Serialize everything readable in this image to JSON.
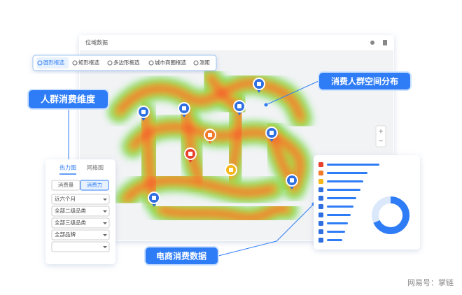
{
  "window": {
    "title": "位域数据"
  },
  "toolbar": {
    "tools": [
      "圆形框选",
      "矩形框选",
      "多边形框选",
      "城市商圈框选",
      "测距"
    ]
  },
  "callouts": {
    "dimension": "人群消费维度",
    "distribution": "消费人群空间分布",
    "ecommerce": "电商消费数据"
  },
  "filter_panel": {
    "tabs": [
      "热力图",
      "网格图"
    ],
    "metrics": [
      "消费量",
      "消费力"
    ],
    "dropdowns": [
      "近六个月",
      "全部二级品类",
      "全部三级品类",
      "全部品牌"
    ]
  },
  "watermark": "网易号：掌链"
}
